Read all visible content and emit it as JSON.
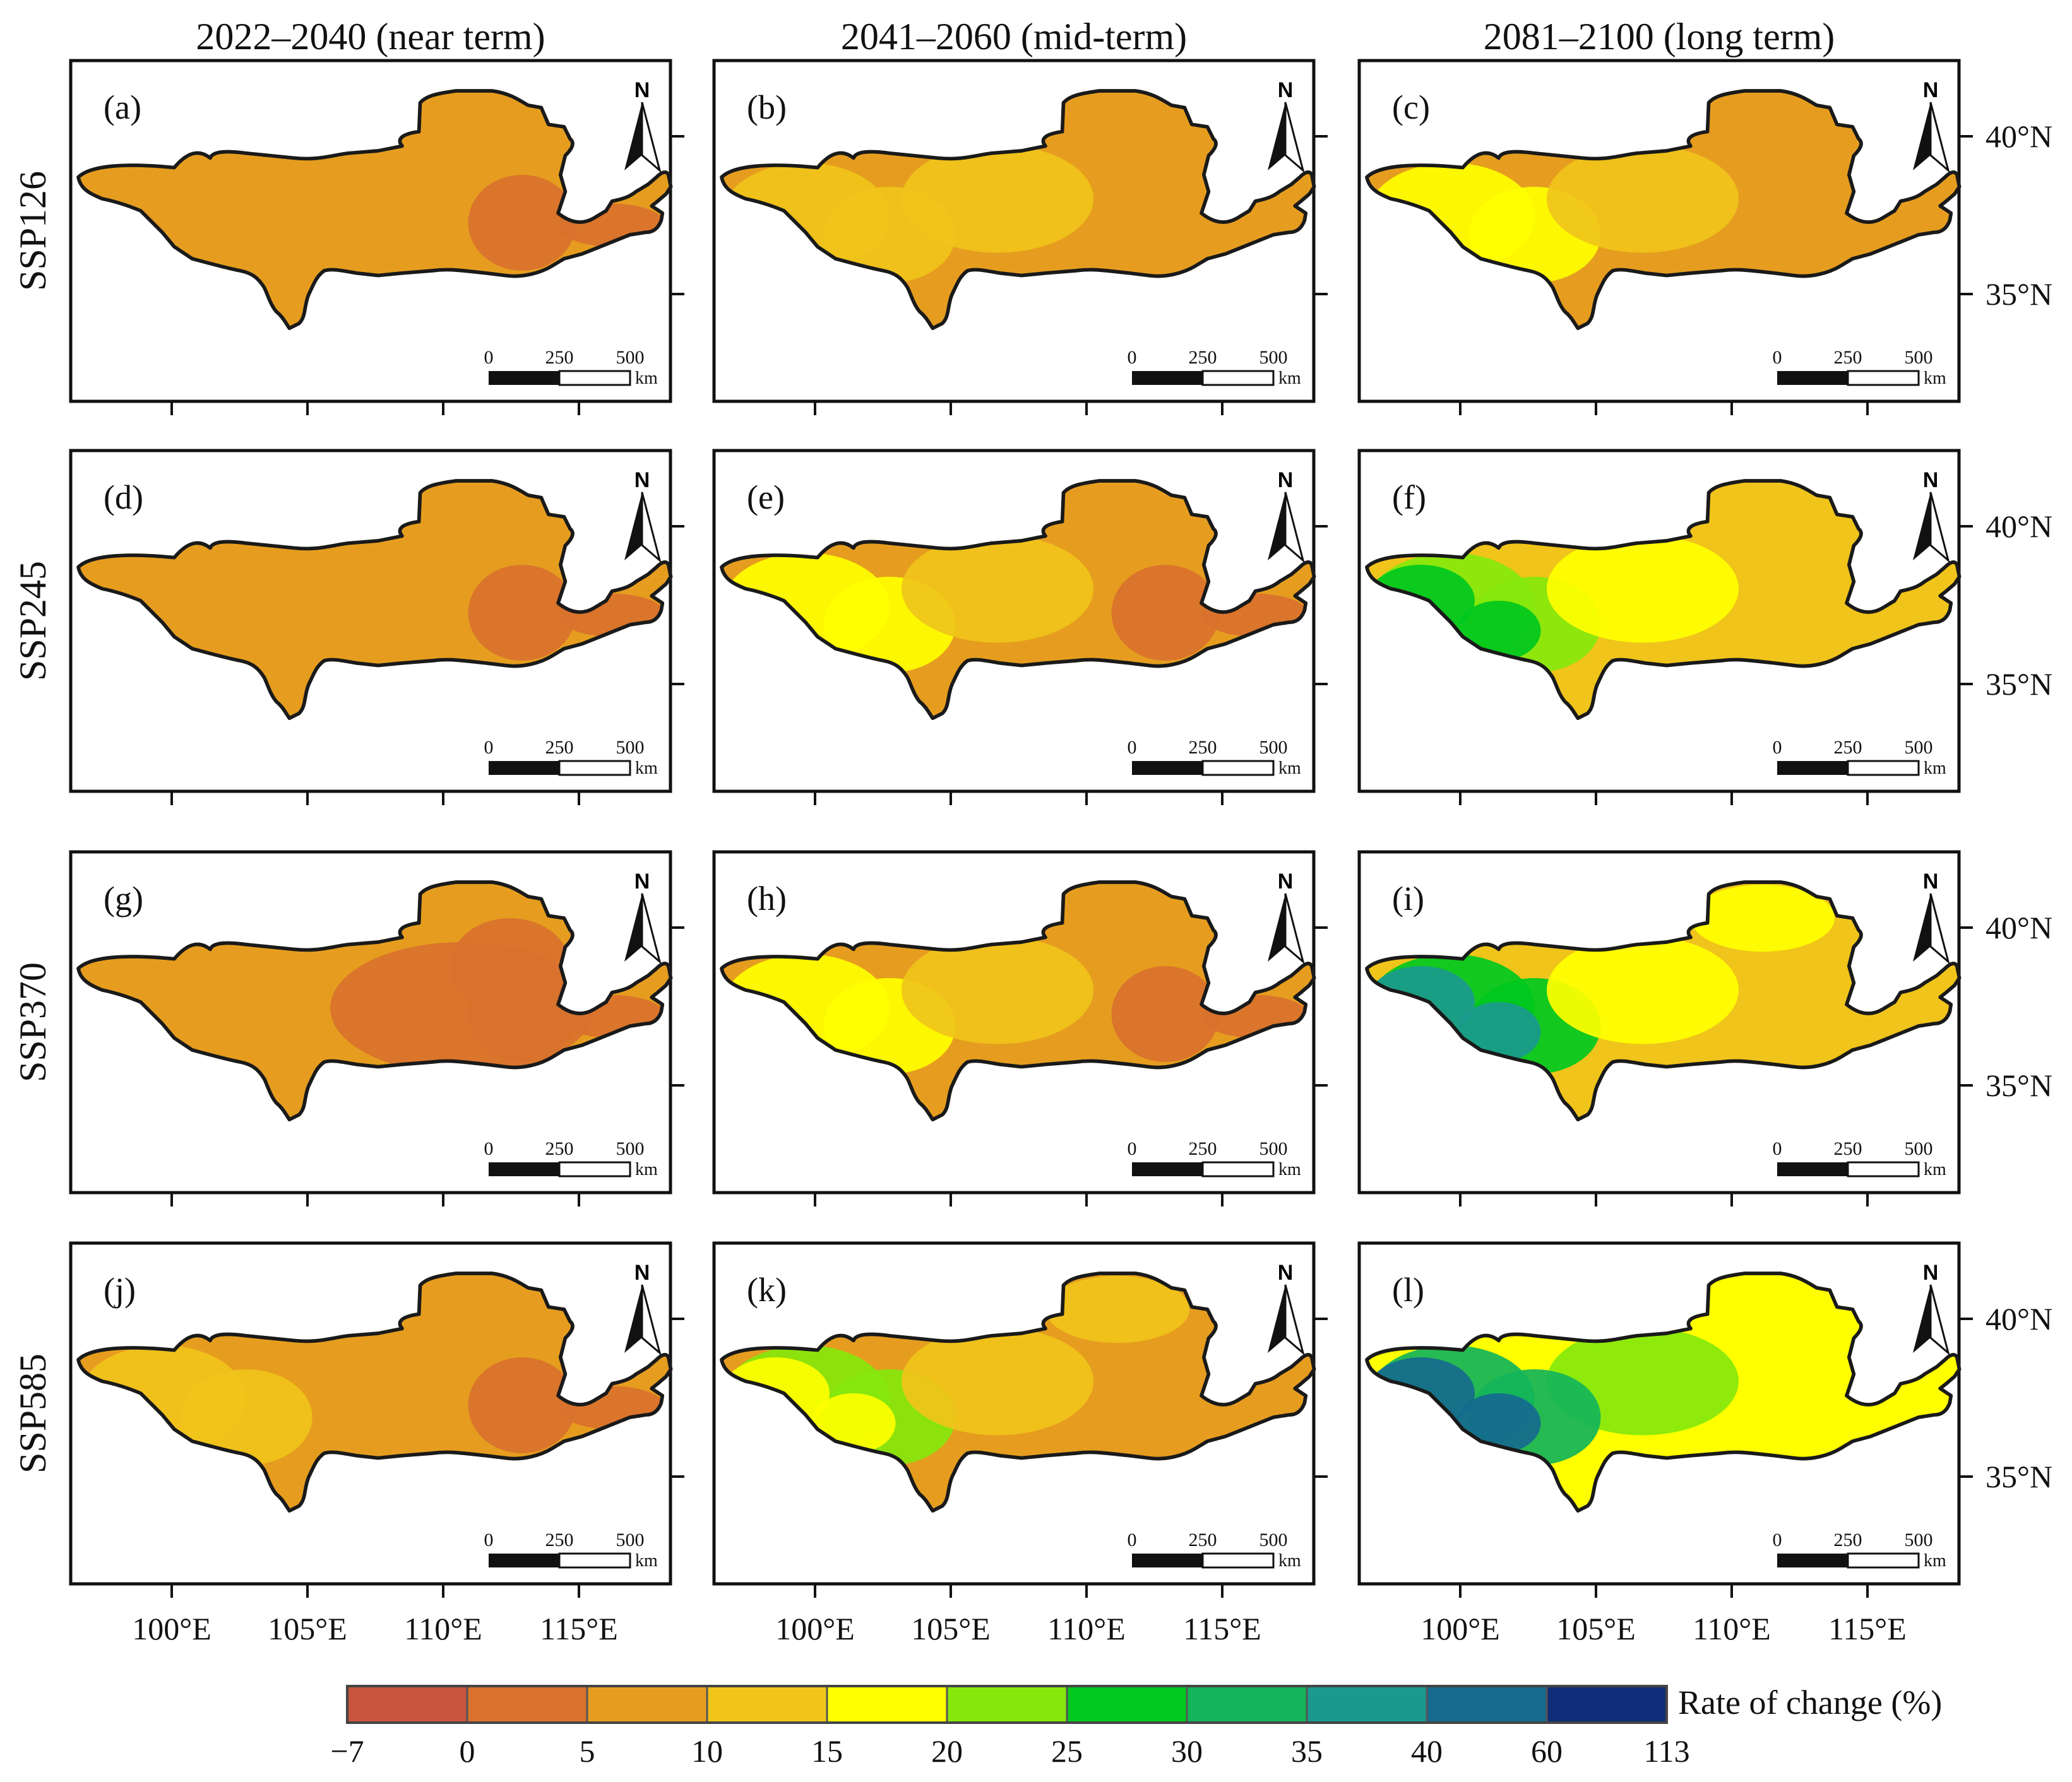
{
  "figure": {
    "column_headers": [
      "2022–2040 (near term)",
      "2041–2060 (mid-term)",
      "2081–2100 (long term)"
    ],
    "row_headers": [
      "SSP126",
      "SSP245",
      "SSP370",
      "SSP585"
    ],
    "panels": [
      {
        "label": "(a)",
        "scenario": "SSP126",
        "period": "2022–2040 (near term)",
        "base_class": 2,
        "patches": [
          {
            "region": "east",
            "class": 1
          }
        ]
      },
      {
        "label": "(b)",
        "scenario": "SSP126",
        "period": "2041–2060 (mid-term)",
        "base_class": 2,
        "patches": [
          {
            "region": "west",
            "class": 3
          },
          {
            "region": "central",
            "class": 3
          }
        ]
      },
      {
        "label": "(c)",
        "scenario": "SSP126",
        "period": "2081–2100 (long term)",
        "base_class": 2,
        "patches": [
          {
            "region": "west",
            "class": 4
          },
          {
            "region": "central",
            "class": 3
          }
        ]
      },
      {
        "label": "(d)",
        "scenario": "SSP245",
        "period": "2022–2040 (near term)",
        "base_class": 2,
        "patches": [
          {
            "region": "east",
            "class": 1
          },
          {
            "region": "west",
            "class": 2
          }
        ]
      },
      {
        "label": "(e)",
        "scenario": "SSP245",
        "period": "2041–2060 (mid-term)",
        "base_class": 2,
        "patches": [
          {
            "region": "west",
            "class": 4
          },
          {
            "region": "central",
            "class": 3
          },
          {
            "region": "east",
            "class": 1
          }
        ]
      },
      {
        "label": "(f)",
        "scenario": "SSP245",
        "period": "2081–2100 (long term)",
        "base_class": 3,
        "patches": [
          {
            "region": "west",
            "class": 5
          },
          {
            "region": "farwest",
            "class": 6
          },
          {
            "region": "central",
            "class": 4
          }
        ]
      },
      {
        "label": "(g)",
        "scenario": "SSP370",
        "period": "2022–2040 (near term)",
        "base_class": 2,
        "patches": [
          {
            "region": "center_large",
            "class": 1
          },
          {
            "region": "east",
            "class": 1
          }
        ]
      },
      {
        "label": "(h)",
        "scenario": "SSP370",
        "period": "2041–2060 (mid-term)",
        "base_class": 2,
        "patches": [
          {
            "region": "west",
            "class": 4
          },
          {
            "region": "central",
            "class": 3
          },
          {
            "region": "east",
            "class": 1
          }
        ]
      },
      {
        "label": "(i)",
        "scenario": "SSP370",
        "period": "2081–2100 (long term)",
        "base_class": 3,
        "patches": [
          {
            "region": "west",
            "class": 6
          },
          {
            "region": "farwest",
            "class": 8
          },
          {
            "region": "central",
            "class": 4
          },
          {
            "region": "north",
            "class": 4
          }
        ]
      },
      {
        "label": "(j)",
        "scenario": "SSP585",
        "period": "2022–2040 (near term)",
        "base_class": 2,
        "patches": [
          {
            "region": "west",
            "class": 3
          },
          {
            "region": "east",
            "class": 1
          }
        ]
      },
      {
        "label": "(k)",
        "scenario": "SSP585",
        "period": "2041–2060 (mid-term)",
        "base_class": 2,
        "patches": [
          {
            "region": "west",
            "class": 5
          },
          {
            "region": "farwest",
            "class": 4
          },
          {
            "region": "central",
            "class": 3
          },
          {
            "region": "north",
            "class": 3
          }
        ]
      },
      {
        "label": "(l)",
        "scenario": "SSP585",
        "period": "2081–2100 (long term)",
        "base_class": 4,
        "patches": [
          {
            "region": "central",
            "class": 5
          },
          {
            "region": "west",
            "class": 7
          },
          {
            "region": "farwest",
            "class": 9
          },
          {
            "region": "north",
            "class": 4
          }
        ]
      }
    ],
    "longitude_labels": [
      "100°E",
      "105°E",
      "110°E",
      "115°E"
    ],
    "latitude_labels": [
      "40°N",
      "35°N"
    ],
    "north_arrow_label": "N",
    "scale_bar": {
      "ticks": [
        "0",
        "250",
        "500"
      ],
      "unit": "km"
    },
    "legend": {
      "title": "Rate of change (%)",
      "ticks": [
        "−7",
        "0",
        "5",
        "10",
        "15",
        "20",
        "25",
        "30",
        "35",
        "40",
        "60",
        "113"
      ],
      "colors": [
        "#c8543e",
        "#d9722c",
        "#e69d1f",
        "#f0c41a",
        "#ffff00",
        "#85e80c",
        "#00c81e",
        "#14b45a",
        "#1a9a8e",
        "#156a8e",
        "#0f2d78"
      ]
    }
  }
}
